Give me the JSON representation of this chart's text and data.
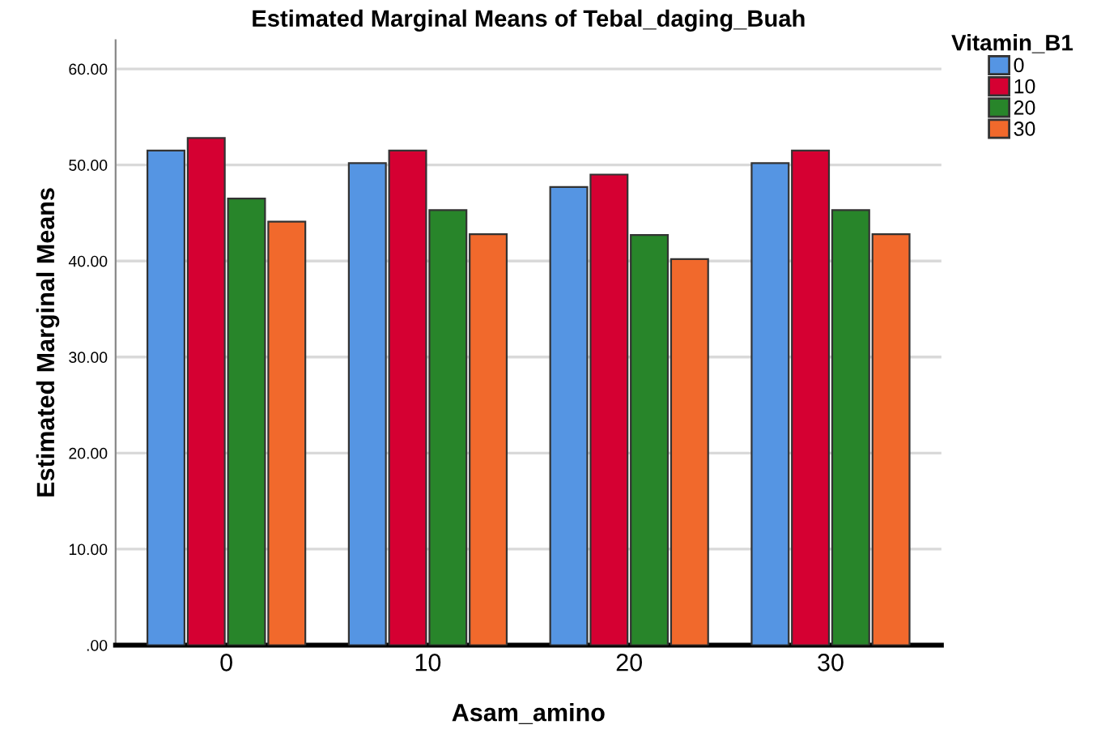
{
  "chart_data": {
    "type": "bar",
    "title": "Estimated Marginal Means of Tebal_daging_Buah",
    "xlabel": "Asam_amino",
    "ylabel": "Estimated Marginal Means",
    "legend_title": "Vitamin_B1",
    "categories": [
      "0",
      "10",
      "20",
      "30"
    ],
    "series": [
      {
        "name": "0",
        "color": "#5595e3",
        "values": [
          51.5,
          50.2,
          47.7,
          50.2
        ]
      },
      {
        "name": "10",
        "color": "#d50032",
        "values": [
          52.8,
          51.5,
          49.0,
          51.5
        ]
      },
      {
        "name": "20",
        "color": "#28852a",
        "values": [
          46.5,
          45.3,
          42.7,
          45.3
        ]
      },
      {
        "name": "30",
        "color": "#f1692c",
        "values": [
          44.1,
          42.8,
          40.2,
          42.8
        ]
      }
    ],
    "ylim": [
      0,
      63
    ],
    "yticks": [
      {
        "value": 0,
        "label": ".00"
      },
      {
        "value": 10,
        "label": "10.00"
      },
      {
        "value": 20,
        "label": "20.00"
      },
      {
        "value": 30,
        "label": "30.00"
      },
      {
        "value": 40,
        "label": "40.00"
      },
      {
        "value": 50,
        "label": "50.00"
      },
      {
        "value": 60,
        "label": "60.00"
      }
    ],
    "grid": "y",
    "legend": "top right"
  }
}
